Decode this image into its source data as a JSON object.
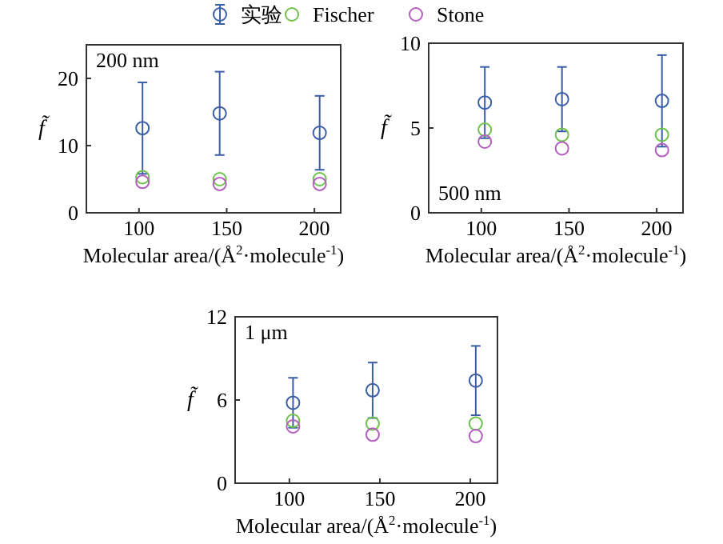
{
  "chart_data": [
    {
      "type": "scatter",
      "x": [
        102,
        146,
        203
      ],
      "xlim": [
        70,
        215
      ],
      "xticks": [
        100,
        150,
        200
      ],
      "ylim": [
        0,
        25
      ],
      "yticks": [
        0,
        10,
        20
      ],
      "xlabel": "Molecular area/(Å$^{2}$·molecule$^{-1}$)",
      "ylabel": "f̃",
      "annotations": [
        "200 nm"
      ],
      "marker": "circle",
      "legend": "top",
      "series": [
        {
          "name": "实验",
          "color": "#3a5da8",
          "values": [
            12.6,
            14.8,
            11.9
          ],
          "errors": [
            6.8,
            6.2,
            5.5
          ]
        },
        {
          "name": "Fischer",
          "color": "#6cc24a",
          "values": [
            5.3,
            5.0,
            5.0
          ]
        },
        {
          "name": "Stone",
          "color": "#b45cc0",
          "values": [
            4.6,
            4.3,
            4.3
          ]
        }
      ]
    },
    {
      "type": "scatter",
      "x": [
        102,
        146,
        203
      ],
      "xlim": [
        70,
        215
      ],
      "xticks": [
        100,
        150,
        200
      ],
      "ylim": [
        0,
        10
      ],
      "yticks": [
        0,
        5,
        10
      ],
      "xlabel": "Molecular area/(Å$^{2}$·molecule$^{-1}$)",
      "ylabel": "f̃",
      "annotations": [
        "500 nm"
      ],
      "marker": "circle",
      "series": [
        {
          "color": "#3a5da8",
          "values": [
            6.5,
            6.7,
            6.6
          ],
          "errors": [
            2.1,
            1.9,
            2.7
          ]
        },
        {
          "color": "#6cc24a",
          "values": [
            4.9,
            4.6,
            4.6
          ]
        },
        {
          "color": "#b45cc0",
          "values": [
            4.2,
            3.8,
            3.7
          ]
        }
      ]
    },
    {
      "type": "scatter",
      "x": [
        102,
        146,
        203
      ],
      "xlim": [
        70,
        215
      ],
      "xticks": [
        100,
        150,
        200
      ],
      "ylim": [
        0,
        12
      ],
      "yticks": [
        0,
        6,
        12
      ],
      "xlabel": "Molecular area/(Å$^{2}$·molecule$^{-1}$)",
      "ylabel": "f̃",
      "annotations": [
        "1 μm"
      ],
      "marker": "circle",
      "series": [
        {
          "color": "#3a5da8",
          "values": [
            5.8,
            6.7,
            7.4
          ],
          "errors": [
            1.8,
            2.0,
            2.5
          ]
        },
        {
          "color": "#6cc24a",
          "values": [
            4.5,
            4.3,
            4.3
          ]
        },
        {
          "color": "#b45cc0",
          "values": [
            4.1,
            3.5,
            3.4
          ]
        }
      ]
    }
  ]
}
